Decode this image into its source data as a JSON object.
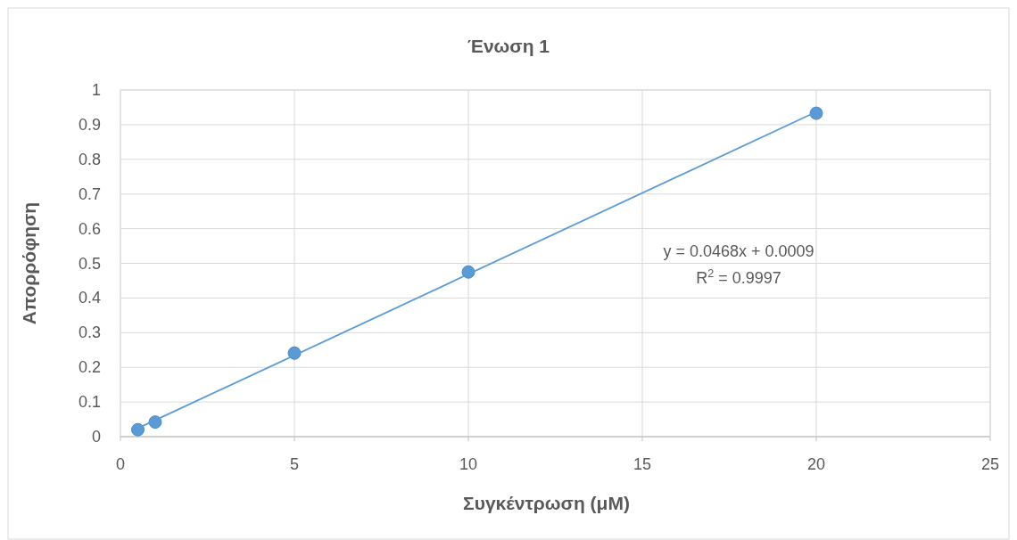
{
  "chart_data": {
    "type": "scatter",
    "title": "Ένωση 1",
    "xlabel": "Συγκέντρωση (μM)",
    "ylabel": "Απορρόφηση",
    "xlim": [
      0,
      25
    ],
    "xticks": [
      0,
      5,
      10,
      15,
      20,
      25
    ],
    "ylim": [
      0,
      1
    ],
    "yticks": [
      0,
      0.1,
      0.2,
      0.3,
      0.4,
      0.5,
      0.6,
      0.7,
      0.8,
      0.9,
      1
    ],
    "grid": true,
    "marker": "circle",
    "series": [
      {
        "color": "#5b9bd5",
        "x": [
          0.5,
          1,
          5,
          10,
          20
        ],
        "values": [
          0.02,
          0.042,
          0.241,
          0.475,
          0.933
        ]
      },
      {
        "type": "line",
        "color": "#5b9bd5",
        "x": [
          0.5,
          20
        ],
        "values": [
          0.024,
          0.937
        ],
        "line_style": "solid",
        "marker": "none"
      }
    ],
    "annotations": [
      "y = 0.0468x + 0.0009",
      "R$^{2}$ = 0.9997"
    ]
  }
}
